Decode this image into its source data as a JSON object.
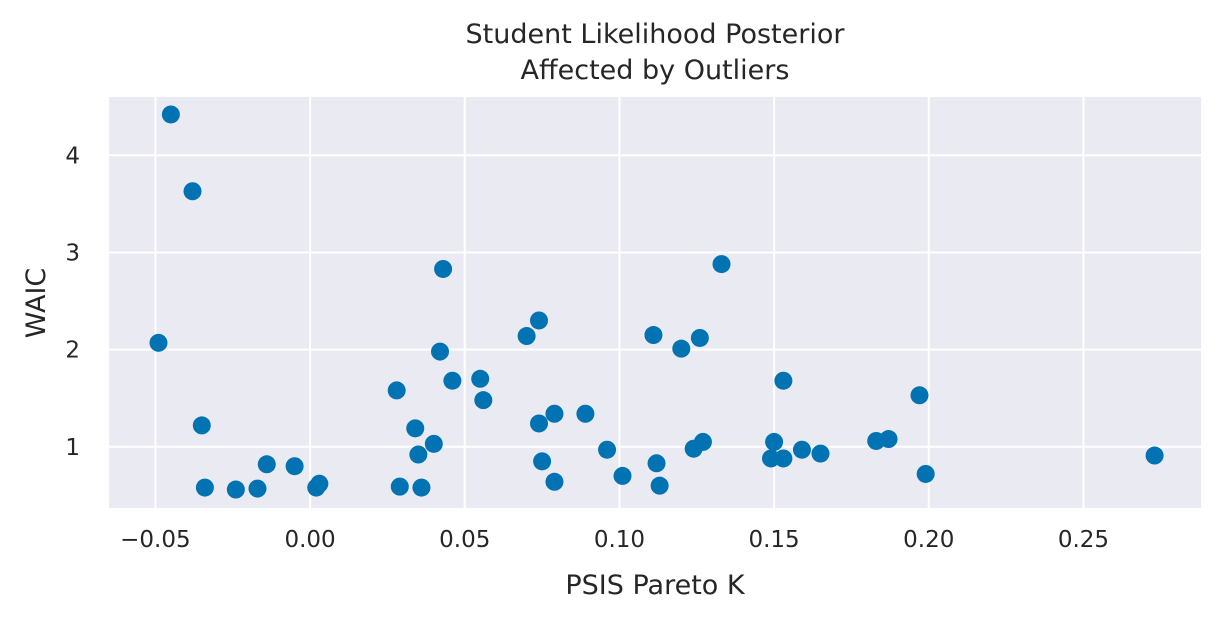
{
  "chart_data": {
    "type": "scatter",
    "title": [
      "Student Likelihood Posterior",
      "Affected by Outliers"
    ],
    "xlabel": "PSIS Pareto K",
    "ylabel": "WAIC",
    "xlim": [
      -0.065,
      0.288
    ],
    "ylim": [
      0.37,
      4.6
    ],
    "xticks": [
      -0.05,
      0.0,
      0.05,
      0.1,
      0.15,
      0.2,
      0.25
    ],
    "xtick_labels": [
      "−0.05",
      "0.00",
      "0.05",
      "0.10",
      "0.15",
      "0.20",
      "0.25"
    ],
    "yticks": [
      1,
      2,
      3,
      4
    ],
    "ytick_labels": [
      "1",
      "2",
      "3",
      "4"
    ],
    "grid": true,
    "colors": {
      "background": "#eaeaf2",
      "grid": "#ffffff",
      "marker": "#0173b2",
      "text": "#262626"
    },
    "x": [
      -0.045,
      -0.038,
      -0.049,
      -0.035,
      -0.034,
      -0.024,
      -0.017,
      -0.014,
      -0.005,
      0.002,
      0.003,
      0.028,
      0.029,
      0.034,
      0.035,
      0.036,
      0.04,
      0.042,
      0.043,
      0.046,
      0.055,
      0.056,
      0.07,
      0.074,
      0.074,
      0.075,
      0.079,
      0.079,
      0.089,
      0.096,
      0.101,
      0.111,
      0.112,
      0.113,
      0.12,
      0.124,
      0.126,
      0.127,
      0.133,
      0.149,
      0.15,
      0.153,
      0.153,
      0.159,
      0.165,
      0.183,
      0.187,
      0.197,
      0.199,
      0.273
    ],
    "y": [
      4.42,
      3.63,
      2.07,
      1.22,
      0.58,
      0.56,
      0.57,
      0.82,
      0.8,
      0.58,
      0.62,
      1.58,
      0.59,
      1.19,
      0.92,
      0.58,
      1.03,
      1.98,
      2.83,
      1.68,
      1.7,
      1.48,
      2.14,
      2.3,
      1.24,
      0.85,
      1.34,
      0.64,
      1.34,
      0.97,
      0.7,
      2.15,
      0.83,
      0.6,
      2.01,
      0.98,
      2.12,
      1.05,
      2.88,
      0.88,
      1.05,
      0.88,
      1.68,
      0.97,
      0.93,
      1.06,
      1.08,
      1.53,
      0.72,
      0.91
    ]
  }
}
